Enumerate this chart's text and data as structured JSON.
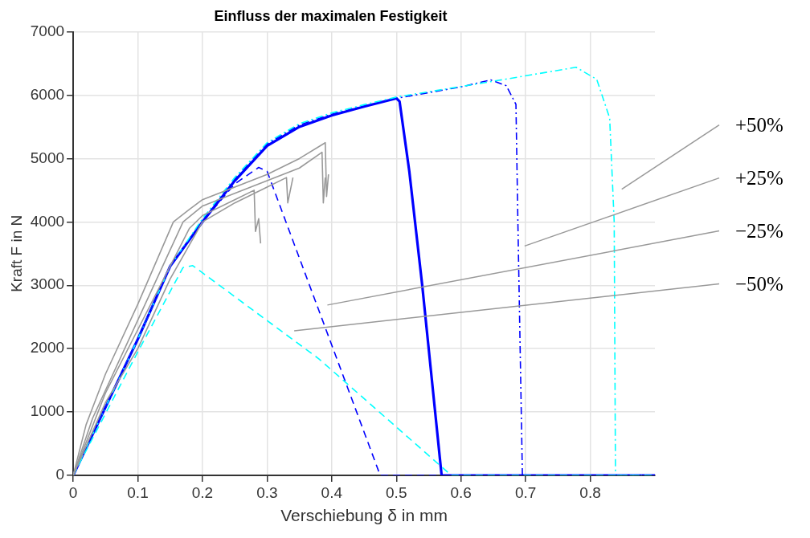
{
  "chart_data": {
    "type": "line",
    "title": "Einfluss der maximalen Festigkeit",
    "xlabel": "Verschiebung δ in mm",
    "ylabel": "Kraft F in N",
    "xlim": [
      0,
      0.9
    ],
    "xticks": [
      0,
      0.1,
      0.2,
      0.3,
      0.4,
      0.5,
      0.6,
      0.7,
      0.8
    ],
    "ylim": [
      0,
      7000
    ],
    "yticks": [
      0,
      1000,
      2000,
      3000,
      4000,
      5000,
      6000,
      7000
    ],
    "grid": true,
    "legend": false,
    "marker": "none",
    "series": [
      {
        "color": "#999999",
        "line_style": "solid",
        "x": [
          0,
          0.02,
          0.05,
          0.1,
          0.155,
          0.18,
          0.2,
          0.25,
          0.3,
          0.35,
          0.39,
          0.392,
          0.395
        ],
        "values": [
          0,
          800,
          1600,
          2700,
          4000,
          4200,
          4350,
          4550,
          4750,
          5000,
          5250,
          4400,
          4750
        ]
      },
      {
        "color": "#999999",
        "line_style": "solid",
        "x": [
          0,
          0.03,
          0.1,
          0.17,
          0.2,
          0.25,
          0.3,
          0.35,
          0.385,
          0.387,
          0.39
        ],
        "values": [
          0,
          900,
          2450,
          4000,
          4250,
          4450,
          4650,
          4850,
          5100,
          4300,
          4700
        ]
      },
      {
        "color": "#999999",
        "line_style": "solid",
        "x": [
          0,
          0.05,
          0.1,
          0.18,
          0.2,
          0.25,
          0.28,
          0.282,
          0.287,
          0.29
        ],
        "values": [
          0,
          1300,
          2300,
          3900,
          4100,
          4350,
          4500,
          3850,
          4050,
          3660
        ]
      },
      {
        "color": "#999999",
        "line_style": "solid",
        "x": [
          0,
          0.05,
          0.1,
          0.15,
          0.2,
          0.25,
          0.3,
          0.33,
          0.332,
          0.34
        ],
        "values": [
          0,
          1150,
          2000,
          3100,
          4000,
          4300,
          4550,
          4700,
          4300,
          4700
        ]
      },
      {
        "color": "#00ffff",
        "line_style": "dashed",
        "x": [
          0,
          0.1,
          0.17,
          0.185,
          0.38,
          0.585,
          0.9
        ],
        "values": [
          0,
          1950,
          3280,
          3310,
          1840,
          0,
          0
        ]
      },
      {
        "color": "#0000ff",
        "line_style": "dashed",
        "x": [
          0,
          0.1,
          0.15,
          0.2,
          0.25,
          0.287,
          0.3,
          0.475,
          0.9
        ],
        "values": [
          0,
          2150,
          3300,
          4000,
          4600,
          4860,
          4800,
          0,
          0
        ]
      },
      {
        "color": "#00ffff",
        "line_style": "dashdot",
        "x": [
          0,
          0.1,
          0.15,
          0.2,
          0.25,
          0.3,
          0.35,
          0.4,
          0.45,
          0.5,
          0.65,
          0.778,
          0.81,
          0.83,
          0.837,
          0.839,
          0.9
        ],
        "values": [
          0,
          2150,
          3300,
          4050,
          4700,
          5250,
          5550,
          5720,
          5850,
          5970,
          6220,
          6440,
          6250,
          5638,
          4000,
          0,
          0
        ]
      },
      {
        "color": "#0000ff",
        "line_style": "dashdot",
        "x": [
          0,
          0.1,
          0.15,
          0.2,
          0.25,
          0.3,
          0.35,
          0.4,
          0.45,
          0.5,
          0.6,
          0.646,
          0.67,
          0.685,
          0.688,
          0.695,
          0.9
        ],
        "values": [
          0,
          2150,
          3300,
          4020,
          4680,
          5230,
          5530,
          5700,
          5830,
          5950,
          6130,
          6240,
          6150,
          5855,
          4000,
          0,
          0
        ]
      },
      {
        "color": "#0000ff",
        "line_style": "solid",
        "x": [
          0,
          0.1,
          0.15,
          0.2,
          0.25,
          0.3,
          0.35,
          0.4,
          0.45,
          0.5,
          0.505,
          0.52,
          0.54,
          0.555,
          0.57,
          0.9
        ],
        "values": [
          0,
          2150,
          3300,
          4000,
          4650,
          5200,
          5500,
          5680,
          5820,
          5950,
          5900,
          4800,
          3000,
          1500,
          0,
          0
        ]
      }
    ],
    "annotations": [
      "+50%",
      "+25%",
      "−25%",
      "−50%"
    ]
  }
}
